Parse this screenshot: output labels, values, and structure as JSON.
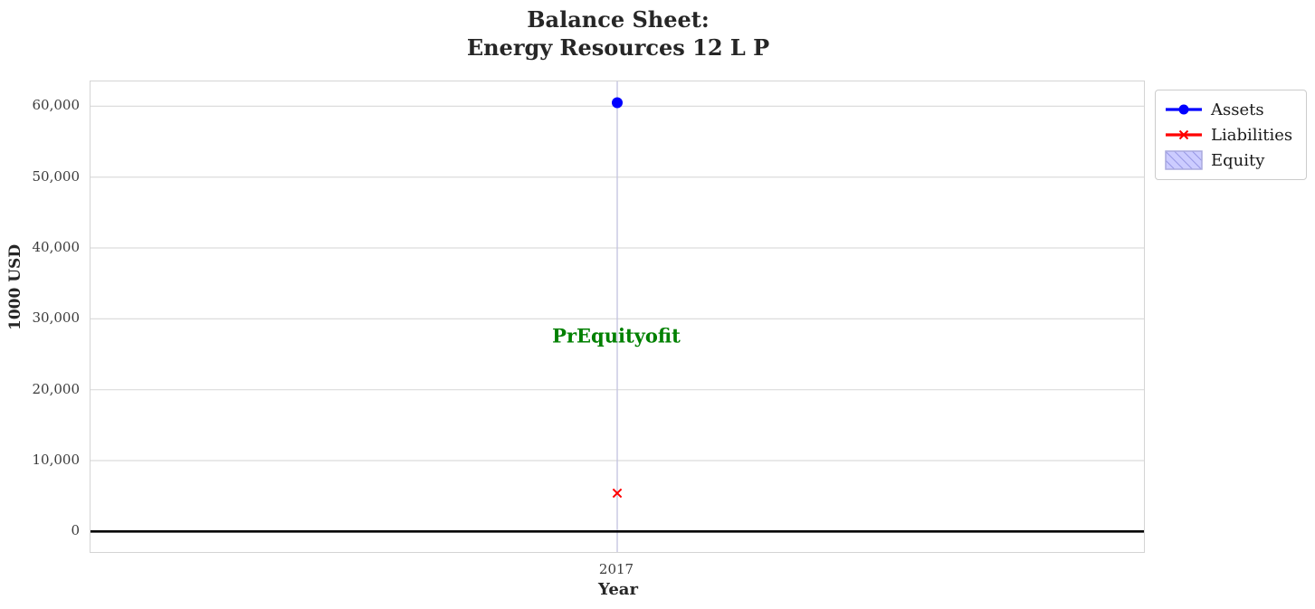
{
  "chart_data": {
    "type": "line",
    "title_line1": "Balance Sheet:",
    "title_line2": "Energy Resources 12 L P",
    "xlabel": "Year",
    "ylabel": "1000 USD",
    "x_categories": [
      "2017"
    ],
    "series": [
      {
        "name": "Assets",
        "marker": "circle",
        "color": "#0000ff",
        "values": [
          60500
        ]
      },
      {
        "name": "Liabilities",
        "marker": "x",
        "color": "#ff0000",
        "values": [
          5400
        ]
      },
      {
        "name": "Equity",
        "marker": "hatched-patch",
        "color": "#ccccff",
        "hatch_color": "#8888dd",
        "edge_color": "#aaaadd",
        "values": []
      }
    ],
    "y_ticks": [
      {
        "value": 0,
        "label": "0"
      },
      {
        "value": 10000,
        "label": "10,000"
      },
      {
        "value": 20000,
        "label": "20,000"
      },
      {
        "value": 30000,
        "label": "30,000"
      },
      {
        "value": 40000,
        "label": "40,000"
      },
      {
        "value": 50000,
        "label": "50,000"
      },
      {
        "value": 60000,
        "label": "60,000"
      }
    ],
    "ylim": [
      -2900,
      63500
    ],
    "grid": true,
    "grid_color_horizontal": "#dcdcdc",
    "grid_color_vertical": "#c6c6e0",
    "zero_line_color": "#000000",
    "legend_position": "outside-top-right",
    "annotation": {
      "text": "PrEquityofit",
      "color": "#008000",
      "y_value": 27500,
      "x_category": "2017"
    }
  }
}
